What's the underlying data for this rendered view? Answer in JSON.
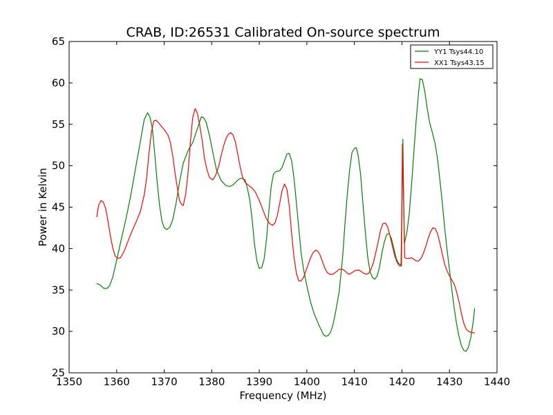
{
  "chart_data": {
    "type": "line",
    "title": "CRAB, ID:26531 Calibrated On-source spectrum",
    "xlabel": "Frequency (MHz)",
    "ylabel": "Power in Kelvin",
    "xlim": [
      1350,
      1440
    ],
    "ylim": [
      25,
      65
    ],
    "xticks": [
      1350,
      1360,
      1370,
      1380,
      1390,
      1400,
      1410,
      1420,
      1430,
      1440
    ],
    "yticks": [
      25,
      30,
      35,
      40,
      45,
      50,
      55,
      60,
      65
    ],
    "grid": false,
    "legend_position": "top-right",
    "series": [
      {
        "name": "YY1 Tsys44.10",
        "color": "#008000",
        "points": [
          [
            1355.8,
            35.8
          ],
          [
            1356.5,
            35.6
          ],
          [
            1357.3,
            35.2
          ],
          [
            1358.0,
            35.2
          ],
          [
            1358.5,
            35.5
          ],
          [
            1359.2,
            36.6
          ],
          [
            1360.0,
            38.6
          ],
          [
            1361.0,
            41.2
          ],
          [
            1362.0,
            43.7
          ],
          [
            1363.0,
            46.5
          ],
          [
            1364.0,
            49.8
          ],
          [
            1365.0,
            53.0
          ],
          [
            1365.8,
            55.6
          ],
          [
            1366.5,
            56.4
          ],
          [
            1367.0,
            55.9
          ],
          [
            1367.5,
            54.5
          ],
          [
            1368.0,
            51.5
          ],
          [
            1368.5,
            48.2
          ],
          [
            1369.0,
            45.3
          ],
          [
            1369.5,
            43.4
          ],
          [
            1370.0,
            42.5
          ],
          [
            1370.6,
            42.3
          ],
          [
            1371.2,
            42.6
          ],
          [
            1371.8,
            43.5
          ],
          [
            1372.5,
            45.5
          ],
          [
            1373.2,
            48.0
          ],
          [
            1374.0,
            50.3
          ],
          [
            1375.0,
            51.8
          ],
          [
            1376.0,
            52.8
          ],
          [
            1377.0,
            54.5
          ],
          [
            1377.8,
            55.9
          ],
          [
            1378.3,
            55.8
          ],
          [
            1378.8,
            55.3
          ],
          [
            1379.5,
            53.7
          ],
          [
            1380.2,
            51.7
          ],
          [
            1381.0,
            49.5
          ],
          [
            1382.0,
            48.2
          ],
          [
            1383.0,
            47.6
          ],
          [
            1383.8,
            47.5
          ],
          [
            1384.5,
            47.7
          ],
          [
            1385.5,
            48.3
          ],
          [
            1386.2,
            48.5
          ],
          [
            1387.0,
            48.3
          ],
          [
            1387.5,
            47.3
          ],
          [
            1388.0,
            45.8
          ],
          [
            1388.5,
            43.5
          ],
          [
            1389.0,
            40.5
          ],
          [
            1389.5,
            38.5
          ],
          [
            1390.0,
            37.6
          ],
          [
            1390.5,
            37.7
          ],
          [
            1391.0,
            38.7
          ],
          [
            1391.5,
            41.0
          ],
          [
            1392.0,
            44.5
          ],
          [
            1392.5,
            47.5
          ],
          [
            1393.0,
            49.0
          ],
          [
            1393.5,
            49.3
          ],
          [
            1394.3,
            49.4
          ],
          [
            1394.8,
            49.8
          ],
          [
            1395.3,
            50.6
          ],
          [
            1395.8,
            51.4
          ],
          [
            1396.3,
            51.5
          ],
          [
            1396.8,
            50.6
          ],
          [
            1397.3,
            48.5
          ],
          [
            1397.8,
            45.5
          ],
          [
            1398.3,
            42.5
          ],
          [
            1398.8,
            39.5
          ],
          [
            1399.3,
            37.5
          ],
          [
            1400.0,
            35.5
          ],
          [
            1400.8,
            33.5
          ],
          [
            1401.5,
            32.2
          ],
          [
            1402.5,
            30.8
          ],
          [
            1403.5,
            29.6
          ],
          [
            1404.0,
            29.4
          ],
          [
            1404.5,
            29.5
          ],
          [
            1405.0,
            29.9
          ],
          [
            1405.5,
            30.8
          ],
          [
            1406.0,
            32.2
          ],
          [
            1406.8,
            34.8
          ],
          [
            1407.5,
            38.8
          ],
          [
            1408.0,
            42.8
          ],
          [
            1408.5,
            46.5
          ],
          [
            1409.0,
            49.5
          ],
          [
            1409.5,
            51.6
          ],
          [
            1410.0,
            52.1
          ],
          [
            1410.4,
            52.2
          ],
          [
            1410.8,
            51.2
          ],
          [
            1411.3,
            49.0
          ],
          [
            1411.8,
            45.5
          ],
          [
            1412.3,
            42.0
          ],
          [
            1412.8,
            39.0
          ],
          [
            1413.3,
            37.2
          ],
          [
            1413.8,
            36.5
          ],
          [
            1414.3,
            36.3
          ],
          [
            1414.8,
            36.7
          ],
          [
            1415.3,
            37.8
          ],
          [
            1415.8,
            39.5
          ],
          [
            1416.3,
            40.8
          ],
          [
            1416.8,
            41.7
          ],
          [
            1417.3,
            41.8
          ],
          [
            1417.8,
            41.2
          ],
          [
            1418.3,
            40.0
          ],
          [
            1418.8,
            38.8
          ],
          [
            1419.3,
            38.2
          ],
          [
            1419.8,
            38.0
          ],
          [
            1420.2,
            53.2
          ],
          [
            1420.5,
            40.6
          ],
          [
            1421.0,
            41.8
          ],
          [
            1421.5,
            44.0
          ],
          [
            1422.0,
            47.5
          ],
          [
            1422.5,
            51.5
          ],
          [
            1423.0,
            55.5
          ],
          [
            1423.5,
            58.8
          ],
          [
            1423.8,
            60.5
          ],
          [
            1424.3,
            60.4
          ],
          [
            1424.8,
            59.0
          ],
          [
            1425.3,
            57.0
          ],
          [
            1425.8,
            55.3
          ],
          [
            1426.5,
            53.8
          ],
          [
            1427.0,
            52.6
          ],
          [
            1427.5,
            50.8
          ],
          [
            1428.0,
            48.2
          ],
          [
            1428.5,
            45.5
          ],
          [
            1429.0,
            42.5
          ],
          [
            1429.5,
            39.8
          ],
          [
            1430.0,
            37.5
          ],
          [
            1430.5,
            35.0
          ],
          [
            1431.0,
            32.8
          ],
          [
            1431.5,
            30.9
          ],
          [
            1432.0,
            29.4
          ],
          [
            1432.5,
            28.3
          ],
          [
            1433.0,
            27.7
          ],
          [
            1433.5,
            27.6
          ],
          [
            1434.0,
            28.1
          ],
          [
            1434.5,
            29.3
          ],
          [
            1435.0,
            31.2
          ],
          [
            1435.3,
            32.8
          ]
        ]
      },
      {
        "name": "XX1 Tsys43.15",
        "color": "#ff0000",
        "points": [
          [
            1355.8,
            43.8
          ],
          [
            1356.2,
            45.2
          ],
          [
            1356.7,
            45.8
          ],
          [
            1357.2,
            45.6
          ],
          [
            1357.7,
            44.8
          ],
          [
            1358.2,
            43.2
          ],
          [
            1358.7,
            41.5
          ],
          [
            1359.2,
            40.0
          ],
          [
            1359.7,
            39.1
          ],
          [
            1360.2,
            38.8
          ],
          [
            1360.8,
            38.9
          ],
          [
            1361.5,
            39.6
          ],
          [
            1362.2,
            40.6
          ],
          [
            1363.0,
            41.8
          ],
          [
            1364.0,
            43.1
          ],
          [
            1365.0,
            44.5
          ],
          [
            1365.8,
            46.5
          ],
          [
            1366.3,
            48.5
          ],
          [
            1366.8,
            51.5
          ],
          [
            1367.3,
            54.0
          ],
          [
            1367.8,
            55.4
          ],
          [
            1368.3,
            55.5
          ],
          [
            1368.8,
            55.2
          ],
          [
            1369.5,
            54.7
          ],
          [
            1370.2,
            54.2
          ],
          [
            1370.8,
            53.7
          ],
          [
            1371.3,
            52.8
          ],
          [
            1371.8,
            51.2
          ],
          [
            1372.3,
            49.0
          ],
          [
            1372.8,
            47.2
          ],
          [
            1373.2,
            45.8
          ],
          [
            1373.7,
            45.3
          ],
          [
            1374.0,
            45.2
          ],
          [
            1374.5,
            46.5
          ],
          [
            1375.0,
            49.0
          ],
          [
            1375.5,
            52.8
          ],
          [
            1376.0,
            55.8
          ],
          [
            1376.5,
            56.9
          ],
          [
            1377.0,
            56.3
          ],
          [
            1377.5,
            54.8
          ],
          [
            1378.0,
            53.0
          ],
          [
            1378.5,
            50.8
          ],
          [
            1379.0,
            49.5
          ],
          [
            1379.5,
            48.6
          ],
          [
            1380.2,
            48.3
          ],
          [
            1380.8,
            48.8
          ],
          [
            1381.5,
            50.0
          ],
          [
            1382.0,
            51.3
          ],
          [
            1382.5,
            52.4
          ],
          [
            1383.0,
            53.3
          ],
          [
            1383.5,
            53.8
          ],
          [
            1384.0,
            54.0
          ],
          [
            1384.5,
            53.7
          ],
          [
            1385.0,
            52.8
          ],
          [
            1385.5,
            51.3
          ],
          [
            1386.0,
            49.8
          ],
          [
            1386.5,
            48.6
          ],
          [
            1387.0,
            48.0
          ],
          [
            1387.8,
            47.6
          ],
          [
            1388.5,
            47.3
          ],
          [
            1389.2,
            46.8
          ],
          [
            1390.0,
            45.8
          ],
          [
            1390.8,
            44.6
          ],
          [
            1391.5,
            43.6
          ],
          [
            1392.2,
            43.0
          ],
          [
            1392.8,
            42.8
          ],
          [
            1393.3,
            43.1
          ],
          [
            1393.8,
            44.0
          ],
          [
            1394.3,
            45.5
          ],
          [
            1394.8,
            47.0
          ],
          [
            1395.3,
            47.8
          ],
          [
            1395.8,
            47.2
          ],
          [
            1396.3,
            45.2
          ],
          [
            1396.8,
            41.8
          ],
          [
            1397.3,
            39.0
          ],
          [
            1397.8,
            37.0
          ],
          [
            1398.3,
            36.1
          ],
          [
            1398.8,
            36.1
          ],
          [
            1399.3,
            36.5
          ],
          [
            1399.8,
            37.3
          ],
          [
            1400.3,
            38.1
          ],
          [
            1400.8,
            38.9
          ],
          [
            1401.3,
            39.5
          ],
          [
            1401.8,
            39.8
          ],
          [
            1402.3,
            39.7
          ],
          [
            1402.8,
            39.2
          ],
          [
            1403.3,
            38.4
          ],
          [
            1403.8,
            37.6
          ],
          [
            1404.3,
            37.1
          ],
          [
            1404.8,
            36.9
          ],
          [
            1405.5,
            36.9
          ],
          [
            1406.2,
            37.2
          ],
          [
            1406.8,
            37.5
          ],
          [
            1407.5,
            37.5
          ],
          [
            1408.0,
            37.3
          ],
          [
            1408.5,
            37.0
          ],
          [
            1409.0,
            36.9
          ],
          [
            1409.5,
            37.1
          ],
          [
            1410.0,
            37.3
          ],
          [
            1410.5,
            37.4
          ],
          [
            1411.0,
            37.4
          ],
          [
            1411.5,
            37.2
          ],
          [
            1412.0,
            37.0
          ],
          [
            1412.5,
            36.9
          ],
          [
            1413.0,
            37.0
          ],
          [
            1413.5,
            37.5
          ],
          [
            1414.0,
            38.3
          ],
          [
            1414.5,
            39.5
          ],
          [
            1415.0,
            40.8
          ],
          [
            1415.5,
            42.2
          ],
          [
            1416.0,
            43.0
          ],
          [
            1416.5,
            43.1
          ],
          [
            1417.0,
            42.6
          ],
          [
            1417.5,
            41.5
          ],
          [
            1418.0,
            40.3
          ],
          [
            1418.5,
            39.1
          ],
          [
            1419.0,
            38.3
          ],
          [
            1419.5,
            37.9
          ],
          [
            1419.9,
            37.9
          ],
          [
            1420.1,
            52.6
          ],
          [
            1420.6,
            38.9
          ],
          [
            1421.0,
            38.8
          ],
          [
            1421.5,
            38.8
          ],
          [
            1422.0,
            38.9
          ],
          [
            1422.5,
            38.7
          ],
          [
            1423.0,
            38.5
          ],
          [
            1423.5,
            38.5
          ],
          [
            1424.0,
            38.8
          ],
          [
            1424.5,
            39.4
          ],
          [
            1425.0,
            40.2
          ],
          [
            1425.5,
            41.2
          ],
          [
            1426.0,
            42.0
          ],
          [
            1426.5,
            42.5
          ],
          [
            1427.0,
            42.4
          ],
          [
            1427.5,
            41.8
          ],
          [
            1428.0,
            40.6
          ],
          [
            1428.5,
            39.3
          ],
          [
            1429.0,
            38.1
          ],
          [
            1429.5,
            37.3
          ],
          [
            1430.0,
            36.7
          ],
          [
            1430.5,
            36.2
          ],
          [
            1431.0,
            35.7
          ],
          [
            1431.5,
            34.8
          ],
          [
            1432.0,
            33.6
          ],
          [
            1432.5,
            32.2
          ],
          [
            1433.0,
            31.0
          ],
          [
            1433.5,
            30.3
          ],
          [
            1434.0,
            30.0
          ],
          [
            1434.5,
            29.9
          ],
          [
            1435.3,
            29.8
          ]
        ]
      }
    ]
  }
}
